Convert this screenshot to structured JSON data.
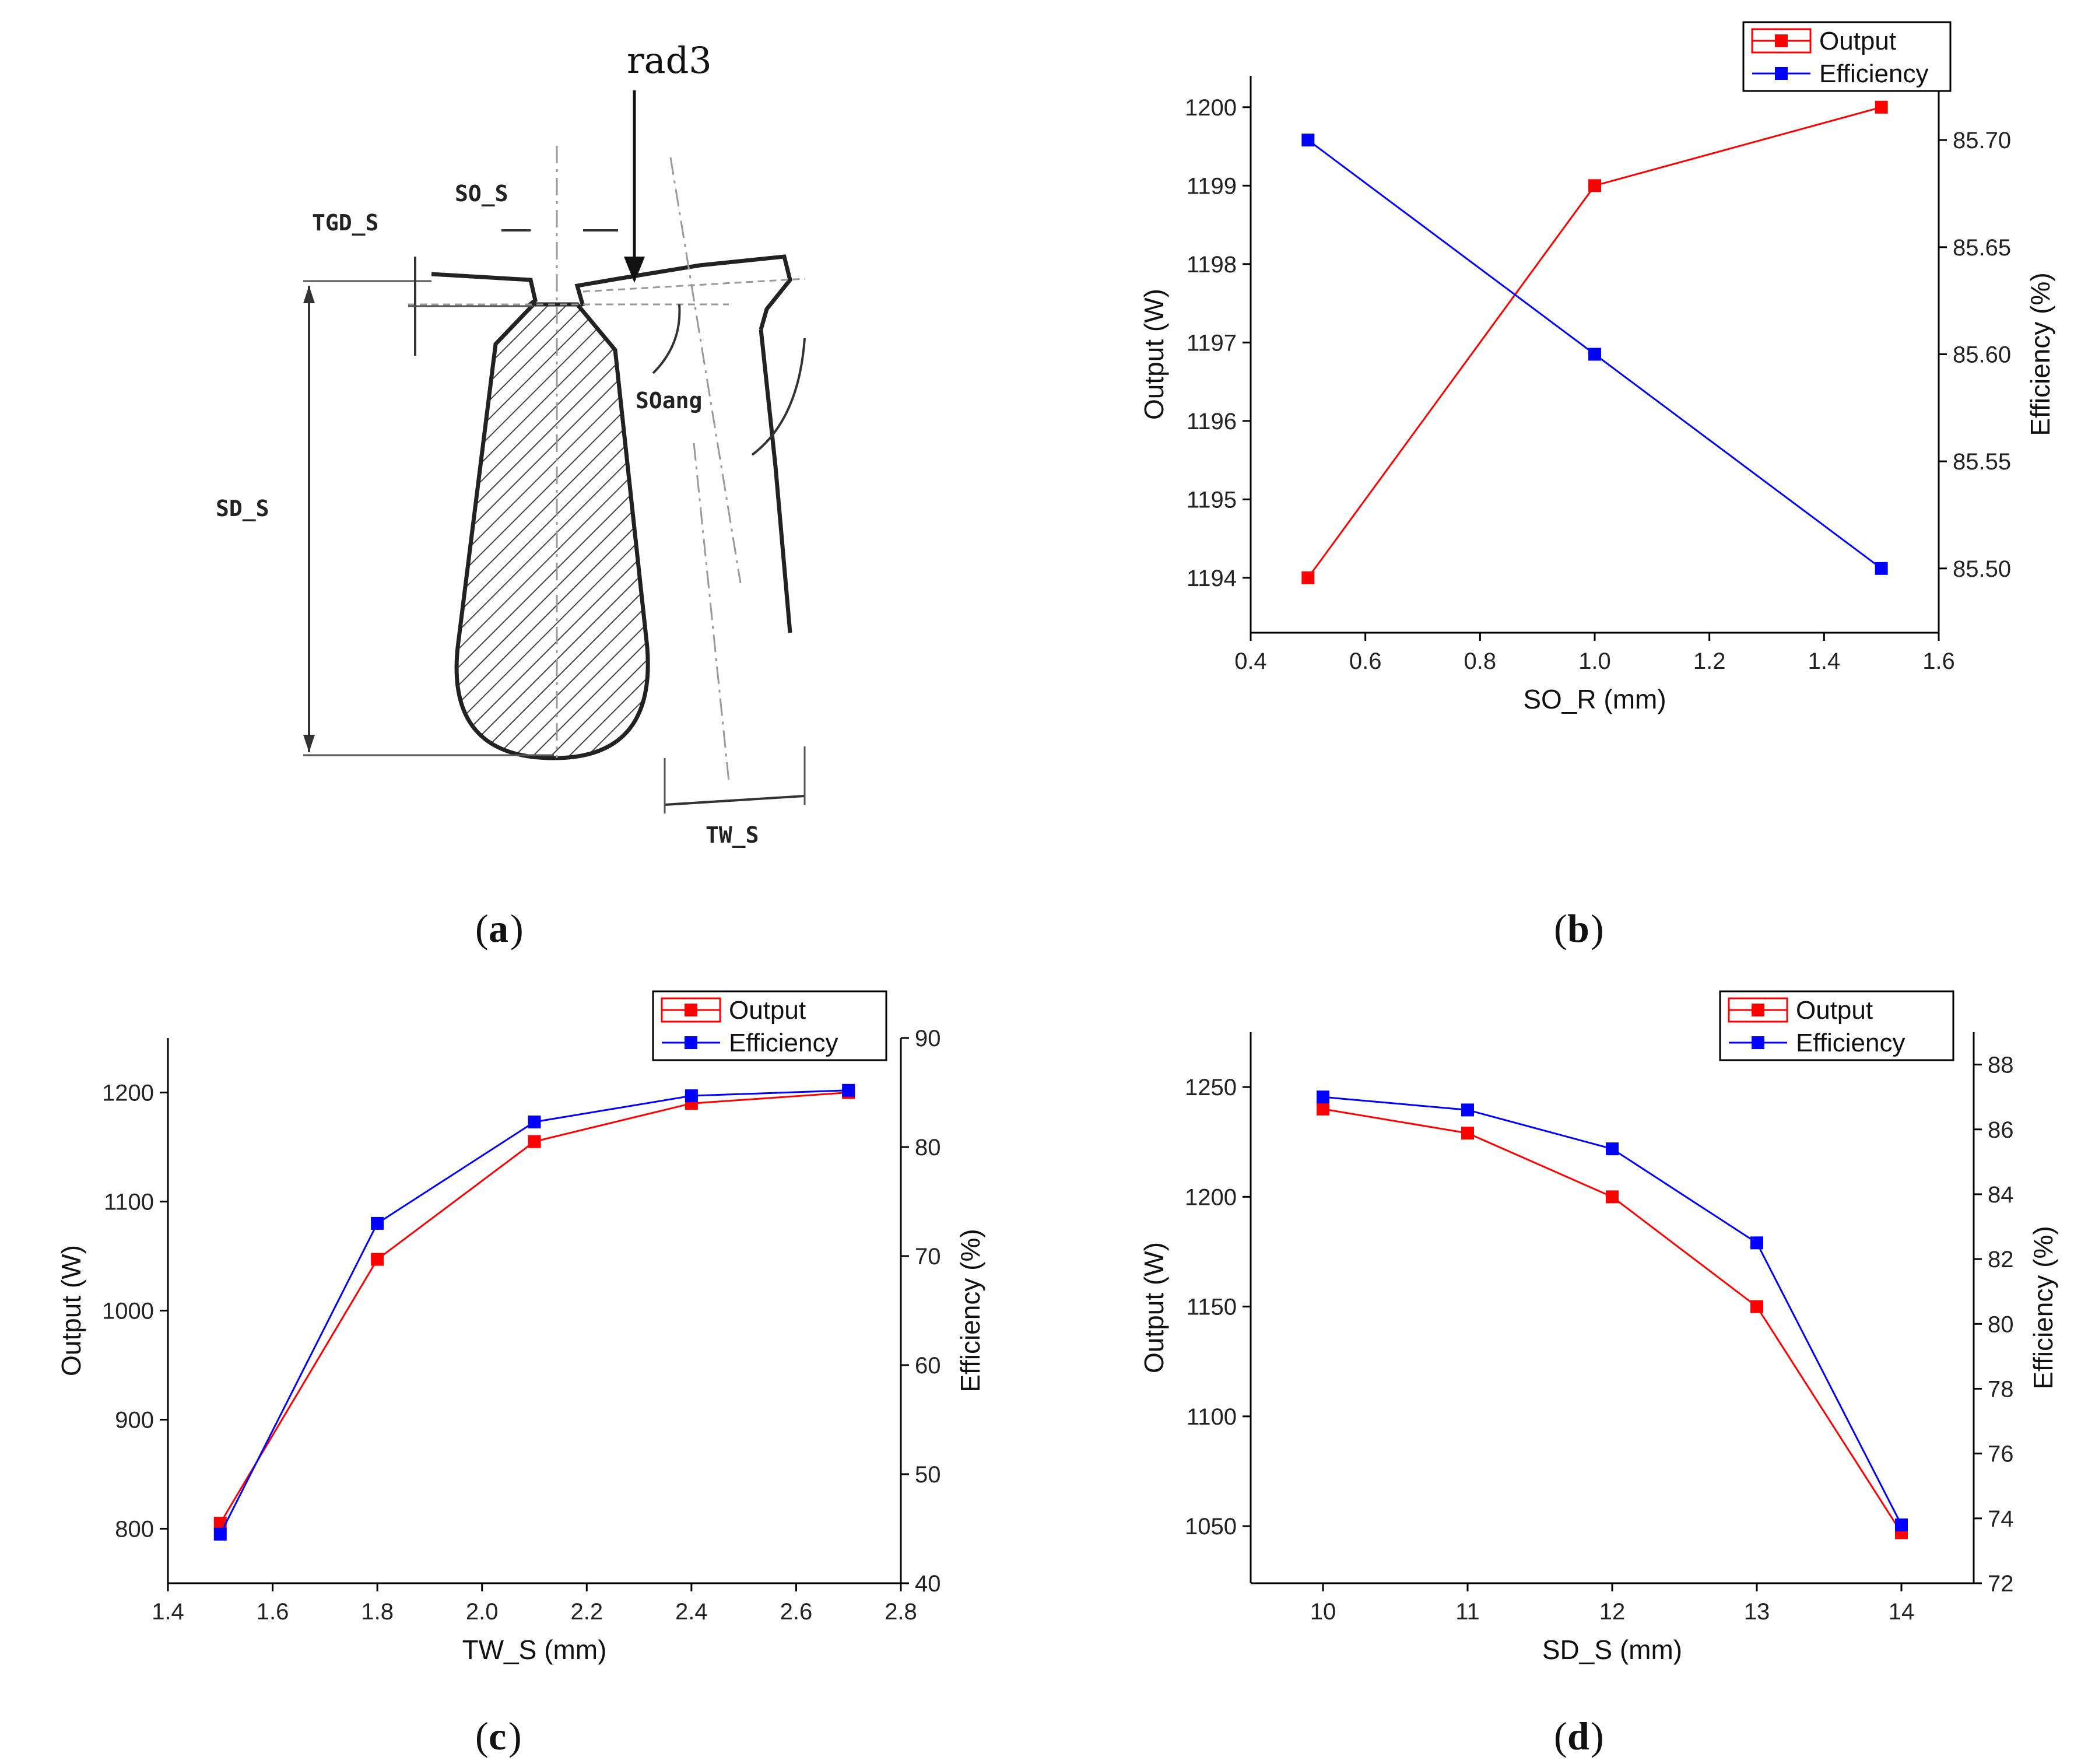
{
  "colors": {
    "output": "#ff0000",
    "efficiency": "#0000ff"
  },
  "diagram": {
    "labels": {
      "rad": "rad3",
      "so": "SO_S",
      "tgd": "TGD_S",
      "soang": "SOang",
      "sd": "SD_S",
      "tw": "TW_S"
    }
  },
  "captions": {
    "a": "a",
    "b": "b",
    "c": "c",
    "d": "d"
  },
  "chart_data": [
    {
      "id": "b",
      "type": "line",
      "x": [
        0.5,
        1.0,
        1.5
      ],
      "xlabel": "SO_R (mm)",
      "xlim": [
        0.4,
        1.6
      ],
      "xticks": [
        0.4,
        0.6,
        0.8,
        1.0,
        1.2,
        1.4,
        1.6
      ],
      "xtick_labels": [
        "0.4",
        "0.6",
        "0.8",
        "1.0",
        "1.2",
        "1.4",
        "1.6"
      ],
      "ylabel_left": "Output (W)",
      "ylim_left": [
        1193.3,
        1200.4
      ],
      "yticks_left": [
        1194,
        1195,
        1196,
        1197,
        1198,
        1199,
        1200
      ],
      "ytick_labels_left": [
        "1194",
        "1195",
        "1196",
        "1197",
        "1198",
        "1199",
        "1200"
      ],
      "ylabel_right": "Efficiency (%)",
      "ylim_right": [
        85.47,
        85.73
      ],
      "yticks_right": [
        85.5,
        85.55,
        85.6,
        85.65,
        85.7
      ],
      "ytick_labels_right": [
        "85.50",
        "85.55",
        "85.60",
        "85.65",
        "85.70"
      ],
      "legend_position": "top-right",
      "series": [
        {
          "name": "Output",
          "axis": "left",
          "values": [
            1194,
            1199,
            1200
          ]
        },
        {
          "name": "Efficiency",
          "axis": "right",
          "values": [
            85.7,
            85.6,
            85.5
          ]
        }
      ]
    },
    {
      "id": "c",
      "type": "line",
      "x": [
        1.5,
        1.8,
        2.1,
        2.4,
        2.7
      ],
      "xlabel": "TW_S (mm)",
      "xlim": [
        1.4,
        2.8
      ],
      "xticks": [
        1.4,
        1.6,
        1.8,
        2.0,
        2.2,
        2.4,
        2.6,
        2.8
      ],
      "xtick_labels": [
        "1.4",
        "1.6",
        "1.8",
        "2.0",
        "2.2",
        "2.4",
        "2.6",
        "2.8"
      ],
      "ylabel_left": "Output (W)",
      "ylim_left": [
        750,
        1250
      ],
      "yticks_left": [
        800,
        900,
        1000,
        1100,
        1200
      ],
      "ytick_labels_left": [
        "800",
        "900",
        "1000",
        "1100",
        "1200"
      ],
      "ylabel_right": "Efficiency (%)",
      "ylim_right": [
        40,
        90
      ],
      "yticks_right": [
        40,
        50,
        60,
        70,
        80,
        90
      ],
      "ytick_labels_right": [
        "40",
        "50",
        "60",
        "70",
        "80",
        "90"
      ],
      "legend_position": "top-right",
      "series": [
        {
          "name": "Output",
          "axis": "left",
          "values": [
            805,
            1047,
            1155,
            1190,
            1200
          ]
        },
        {
          "name": "Efficiency",
          "axis": "right",
          "values": [
            44.5,
            73,
            82.3,
            84.7,
            85.2
          ]
        }
      ]
    },
    {
      "id": "d",
      "type": "line",
      "x": [
        10,
        11,
        12,
        13,
        14
      ],
      "xlabel": "SD_S (mm)",
      "xlim": [
        9.5,
        14.5
      ],
      "xticks": [
        10,
        11,
        12,
        13,
        14
      ],
      "xtick_labels": [
        "10",
        "11",
        "12",
        "13",
        "14"
      ],
      "ylabel_left": "Output (W)",
      "ylim_left": [
        1024,
        1275
      ],
      "yticks_left": [
        1050,
        1100,
        1150,
        1200,
        1250
      ],
      "ytick_labels_left": [
        "1050",
        "1100",
        "1150",
        "1200",
        "1250"
      ],
      "ylabel_right": "Efficiency (%)",
      "ylim_right": [
        72,
        89
      ],
      "yticks_right": [
        72,
        74,
        76,
        78,
        80,
        82,
        84,
        86,
        88
      ],
      "ytick_labels_right": [
        "72",
        "74",
        "76",
        "78",
        "80",
        "82",
        "84",
        "86",
        "88"
      ],
      "legend_position": "top-right",
      "series": [
        {
          "name": "Output",
          "axis": "left",
          "values": [
            1240,
            1229,
            1200,
            1150,
            1047
          ]
        },
        {
          "name": "Efficiency",
          "axis": "right",
          "values": [
            87.0,
            86.6,
            85.4,
            82.5,
            73.8
          ]
        }
      ]
    }
  ]
}
